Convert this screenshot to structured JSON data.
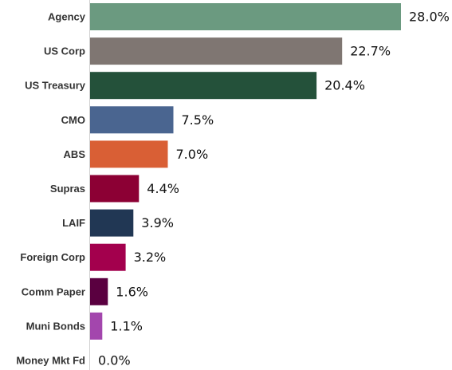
{
  "chart_data": {
    "type": "bar",
    "orientation": "horizontal",
    "title": "",
    "xlabel": "",
    "ylabel": "",
    "categories": [
      "Agency",
      "US Corp",
      "US Treasury",
      "CMO",
      "ABS",
      "Supras",
      "LAIF",
      "Foreign Corp",
      "Comm Paper",
      "Muni Bonds",
      "Money Mkt Fd"
    ],
    "values": [
      28.0,
      22.7,
      20.4,
      7.5,
      7.0,
      4.4,
      3.9,
      3.2,
      1.6,
      1.1,
      0.0
    ],
    "value_labels": [
      "28.0%",
      "22.7%",
      "20.4%",
      "7.5%",
      "7.0%",
      "4.4%",
      "3.9%",
      "3.2%",
      "1.6%",
      "1.1%",
      "0.0%"
    ],
    "colors": [
      "#6b9a80",
      "#7f7672",
      "#24513a",
      "#4a6590",
      "#d95f35",
      "#8c0034",
      "#213754",
      "#a3004d",
      "#5a0040",
      "#a346ad",
      "#8a8a8a"
    ],
    "xlim": [
      0,
      28.0
    ],
    "grid": false,
    "legend": "none"
  }
}
